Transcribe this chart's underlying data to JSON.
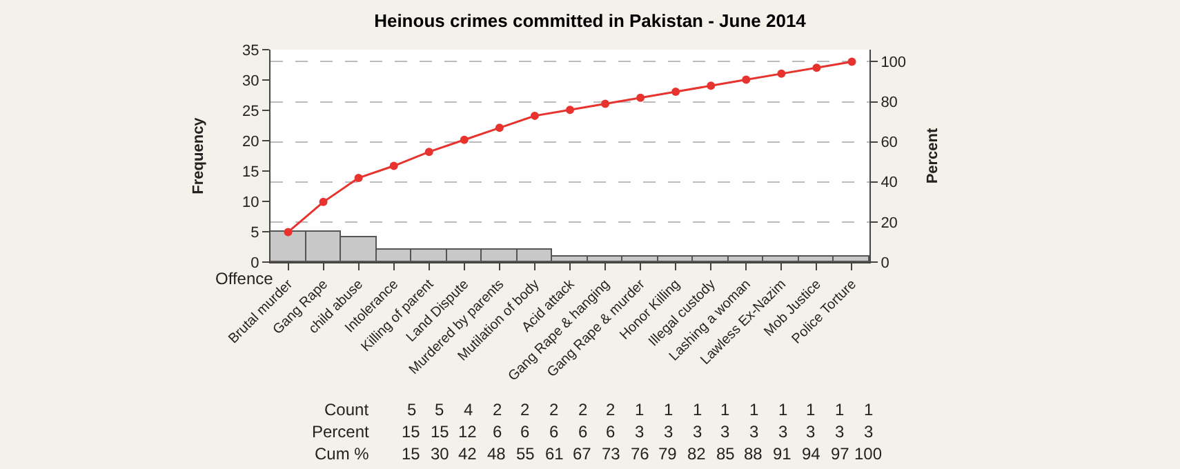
{
  "chart_data": {
    "type": "bar",
    "title": "Heinous crimes committed in Pakistan - June 2014",
    "xlabel": "Offence",
    "ylabel": "Frequency",
    "y2label": "Percent",
    "categories": [
      "Brutal murder",
      "Gang Rape",
      "child abuse",
      "Intolerance",
      "Killing of parent",
      "Land Dispute",
      "Murdered by parents",
      "Mutilation of body",
      "Acid attack",
      "Gang Rape & hanging",
      "Gang Rape & murder",
      "Honor Killing",
      "Illegal custody",
      "Lashing a woman",
      "Lawless Ex-Nazim",
      "Mob Justice",
      "Police Torture"
    ],
    "series": [
      {
        "color": "#c8c8c8",
        "values": [
          5,
          5,
          4,
          2,
          2,
          2,
          2,
          2,
          1,
          1,
          1,
          1,
          1,
          1,
          1,
          1,
          1
        ]
      },
      {
        "type": "line",
        "axis": "y2",
        "color": "#e8322d",
        "values": [
          15,
          30,
          42,
          48,
          55,
          61,
          67,
          73,
          76,
          79,
          82,
          85,
          88,
          91,
          94,
          97,
          100
        ]
      }
    ],
    "annotations": [
      "Count 5 5 4 2 2 2 2 2 1 1 1 1 1 1 1 1 1",
      "Percent 15 15 12 6 6 6 6 6 3 3 3 3 3 3 3 3 3",
      "Cum % 15 30 42 48 55 61 67 73 76 79 82 85 88 91 94 97 100"
    ],
    "ylim": [
      0,
      35
    ],
    "yticks": [
      0,
      5,
      10,
      15,
      20,
      25,
      30,
      35
    ],
    "y2lim": [
      0,
      106
    ],
    "y2ticks": [
      0,
      20,
      40,
      60,
      80,
      100
    ],
    "grid": true,
    "marker": "circle",
    "line_style": "solid"
  }
}
